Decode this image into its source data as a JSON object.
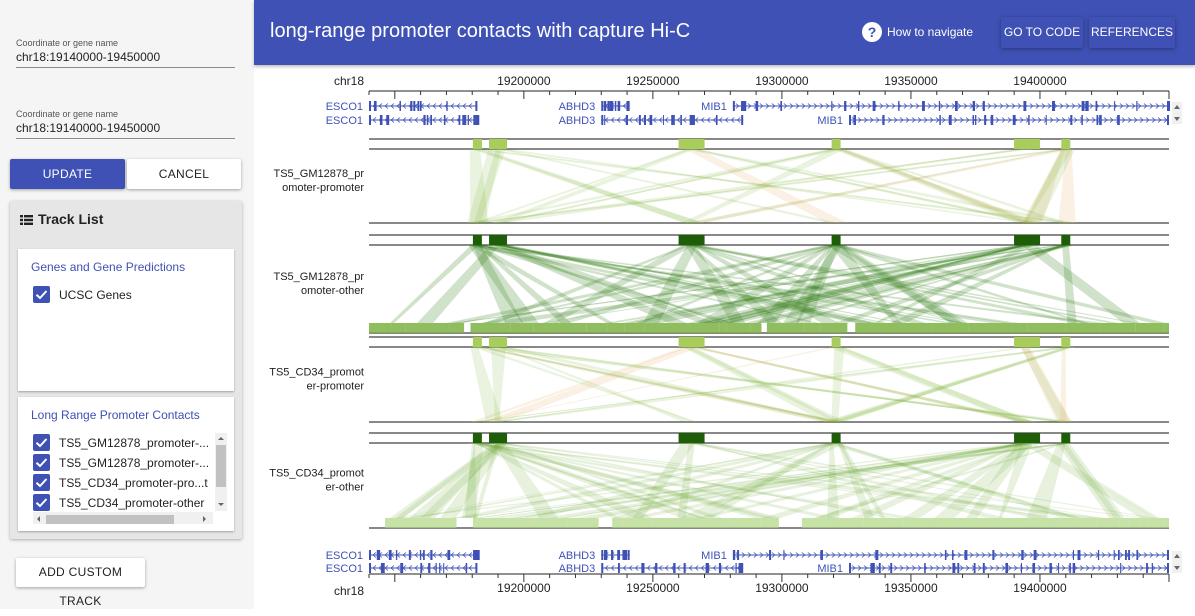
{
  "sidebar": {
    "search1": {
      "label": "Coordinate or gene name",
      "value": "chr18:19140000-19450000"
    },
    "search2": {
      "label": "Coordinate or gene name",
      "value": "chr18:19140000-19450000"
    },
    "update_label": "UPDATE",
    "cancel_label": "CANCEL",
    "tracklist_title": "Track List",
    "groups": [
      {
        "title": "Genes and Gene Predictions",
        "items": [
          {
            "label": "UCSC Genes",
            "checked": true
          }
        ]
      },
      {
        "title": "Long Range Promoter Contacts",
        "items": [
          {
            "label": "TS5_GM12878_promoter-...",
            "checked": true
          },
          {
            "label": "TS5_GM12878_promoter-...",
            "checked": true
          },
          {
            "label": "TS5_CD34_promoter-pro...t",
            "checked": true
          },
          {
            "label": "TS5_CD34_promoter-other",
            "checked": true
          }
        ]
      }
    ],
    "add_custom_label": "ADD CUSTOM TRACK"
  },
  "header": {
    "title": "long-range promoter contacts with capture Hi-C",
    "help_label": "How to navigate",
    "code_label": "GO TO CODE",
    "references_label": "REFERENCES"
  },
  "browser": {
    "chromosome": "chr18",
    "region": [
      19140000,
      19450000
    ],
    "ticks": [
      19200000,
      19250000,
      19300000,
      19350000,
      19400000
    ],
    "tick_labels": [
      "19200000",
      "19250000",
      "19300000",
      "19350000",
      "19400000"
    ],
    "genes_row1": [
      {
        "name": "ESCO1",
        "start": 19140000,
        "end": 19182000,
        "strand": "-"
      },
      {
        "name": "ABHD3",
        "start": 19230000,
        "end": 19241000,
        "strand": "-"
      },
      {
        "name": "MIB1",
        "start": 19281000,
        "end": 19450000,
        "strand": "+"
      }
    ],
    "genes_row2": [
      {
        "name": "ESCO1",
        "start": 19140000,
        "end": 19182000,
        "strand": "-"
      },
      {
        "name": "ABHD3",
        "start": 19230000,
        "end": 19285000,
        "strand": "-"
      },
      {
        "name": "MIB1",
        "start": 19326000,
        "end": 19450000,
        "strand": "+"
      }
    ],
    "tracks": [
      {
        "label": "TS5_GM12878_pr\nomoter-promoter",
        "type": "promoter-promoter",
        "color": "#9cc34a"
      },
      {
        "label": "TS5_GM12878_pr\nomoter-other",
        "type": "promoter-other",
        "color": "#2e7d12"
      },
      {
        "label": "TS5_CD34_promot\ner-promoter",
        "type": "promoter-promoter",
        "color": "#9cc34a"
      },
      {
        "label": "TS5_CD34_promot\ner-other",
        "type": "promoter-other",
        "color": "#4c9a1e"
      }
    ],
    "promoter_anchors": [
      19182000,
      19190000,
      19265000,
      19321000,
      19395000,
      19410000
    ],
    "colors": {
      "accent": "#3f51b5",
      "gene": "#3f51b5",
      "contact_green": "#7fb23a",
      "contact_orange": "#e0a050"
    }
  }
}
